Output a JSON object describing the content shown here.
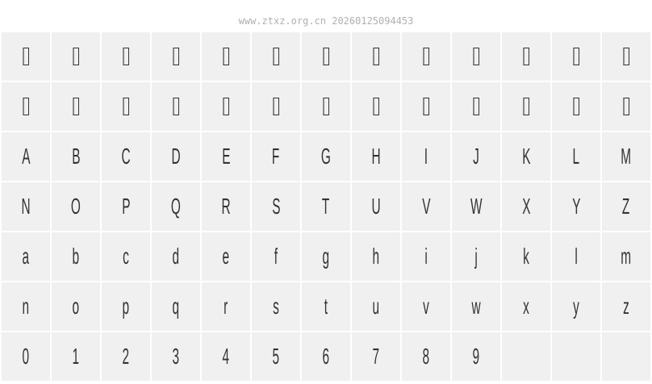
{
  "header": "www.ztxz.org.cn 20260125094453",
  "missing_glyph_count": 26,
  "glyphs": [
    "A",
    "B",
    "C",
    "D",
    "E",
    "F",
    "G",
    "H",
    "I",
    "J",
    "K",
    "L",
    "M",
    "N",
    "O",
    "P",
    "Q",
    "R",
    "S",
    "T",
    "U",
    "V",
    "W",
    "X",
    "Y",
    "Z",
    "a",
    "b",
    "c",
    "d",
    "e",
    "f",
    "g",
    "h",
    "i",
    "j",
    "k",
    "l",
    "m",
    "n",
    "o",
    "p",
    "q",
    "r",
    "s",
    "t",
    "u",
    "v",
    "w",
    "x",
    "y",
    "z",
    "0",
    "1",
    "2",
    "3",
    "4",
    "5",
    "6",
    "7",
    "8",
    "9"
  ],
  "empty_cells": 3
}
